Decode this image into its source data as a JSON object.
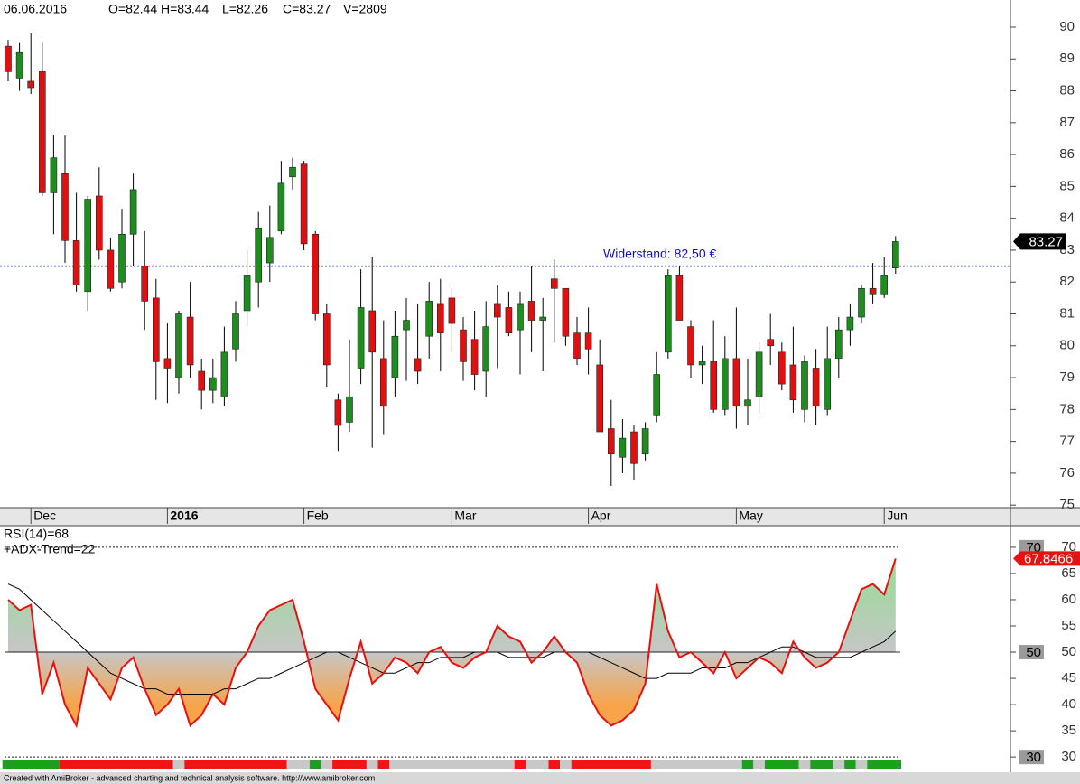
{
  "chart_data": [
    {
      "type": "candlestick",
      "header": [
        "06.06.2016",
        "O=82.44",
        "H=83.44",
        "L=82.26",
        "C=83.27",
        "V=2809"
      ],
      "categories": [
        null,
        null,
        "Dec",
        null,
        null,
        null,
        null,
        null,
        null,
        null,
        null,
        null,
        null,
        null,
        "2016",
        null,
        null,
        null,
        null,
        null,
        null,
        null,
        null,
        null,
        null,
        null,
        "Feb",
        null,
        null,
        null,
        null,
        null,
        null,
        null,
        null,
        null,
        null,
        null,
        null,
        "Mar",
        null,
        null,
        null,
        null,
        null,
        null,
        null,
        null,
        null,
        null,
        null,
        "Apr",
        null,
        null,
        null,
        null,
        null,
        null,
        null,
        null,
        null,
        null,
        null,
        null,
        "May",
        null,
        null,
        null,
        null,
        null,
        null,
        null,
        null,
        null,
        null,
        null,
        null,
        "Jun",
        null
      ],
      "candles": [
        [
          89.4,
          89.6,
          88.3,
          88.6
        ],
        [
          88.4,
          89.5,
          88.0,
          89.2
        ],
        [
          88.3,
          89.8,
          87.9,
          88.1
        ],
        [
          88.6,
          89.5,
          84.7,
          84.8
        ],
        [
          84.8,
          86.6,
          83.5,
          85.9
        ],
        [
          85.4,
          86.6,
          82.6,
          83.3
        ],
        [
          83.3,
          84.8,
          81.7,
          81.9
        ],
        [
          81.7,
          84.7,
          81.1,
          84.6
        ],
        [
          84.7,
          85.6,
          82.7,
          83.0
        ],
        [
          83.0,
          83.4,
          81.7,
          81.8
        ],
        [
          82.0,
          84.3,
          81.8,
          83.5
        ],
        [
          83.5,
          85.4,
          82.5,
          84.9
        ],
        [
          82.5,
          83.6,
          80.5,
          81.4
        ],
        [
          81.5,
          82.1,
          78.3,
          79.5
        ],
        [
          79.6,
          80.7,
          78.2,
          79.3
        ],
        [
          79.0,
          81.1,
          78.5,
          81.0
        ],
        [
          80.9,
          82.0,
          79.0,
          79.4
        ],
        [
          79.2,
          79.6,
          78.0,
          78.6
        ],
        [
          78.6,
          79.6,
          78.2,
          79.0
        ],
        [
          78.4,
          80.6,
          78.1,
          79.8
        ],
        [
          79.9,
          81.4,
          79.5,
          81.0
        ],
        [
          81.1,
          83.0,
          80.6,
          82.2
        ],
        [
          82.0,
          84.2,
          81.2,
          83.7
        ],
        [
          82.6,
          84.4,
          82.0,
          83.4
        ],
        [
          83.6,
          85.8,
          83.5,
          85.1
        ],
        [
          85.3,
          85.9,
          84.9,
          85.6
        ],
        [
          85.7,
          85.8,
          83.0,
          83.2
        ],
        [
          83.5,
          83.6,
          80.8,
          81.0
        ],
        [
          81.0,
          81.3,
          78.7,
          79.4
        ],
        [
          78.3,
          78.5,
          76.7,
          77.5
        ],
        [
          77.6,
          80.2,
          77.3,
          78.4
        ],
        [
          79.3,
          82.4,
          78.8,
          81.2
        ],
        [
          81.1,
          82.8,
          76.8,
          79.8
        ],
        [
          79.6,
          80.8,
          77.2,
          78.1
        ],
        [
          79.0,
          81.1,
          78.4,
          80.3
        ],
        [
          80.5,
          81.5,
          78.9,
          80.8
        ],
        [
          79.6,
          81.3,
          78.8,
          79.2
        ],
        [
          80.3,
          82.0,
          79.6,
          81.4
        ],
        [
          81.3,
          82.1,
          79.2,
          80.4
        ],
        [
          81.5,
          81.8,
          79.8,
          80.7
        ],
        [
          80.5,
          80.9,
          78.9,
          79.5
        ],
        [
          80.2,
          81.1,
          78.6,
          79.1
        ],
        [
          79.2,
          81.4,
          78.4,
          80.6
        ],
        [
          81.3,
          81.9,
          79.3,
          80.9
        ],
        [
          81.2,
          81.7,
          80.3,
          80.4
        ],
        [
          80.5,
          81.7,
          79.1,
          81.3
        ],
        [
          81.4,
          82.5,
          79.8,
          80.8
        ],
        [
          80.8,
          81.5,
          79.2,
          80.9
        ],
        [
          82.1,
          82.7,
          80.1,
          81.8
        ],
        [
          81.8,
          81.8,
          80.0,
          80.3
        ],
        [
          80.4,
          80.9,
          79.4,
          79.6
        ],
        [
          80.4,
          81.2,
          79.1,
          79.9
        ],
        [
          79.4,
          80.2,
          77.3,
          77.3
        ],
        [
          77.4,
          78.3,
          75.6,
          76.6
        ],
        [
          76.5,
          77.7,
          76.0,
          77.1
        ],
        [
          77.3,
          77.5,
          75.8,
          76.3
        ],
        [
          76.6,
          77.6,
          76.4,
          77.4
        ],
        [
          77.8,
          79.8,
          77.6,
          79.1
        ],
        [
          79.8,
          82.4,
          79.6,
          82.2
        ],
        [
          82.2,
          82.5,
          80.8,
          80.8
        ],
        [
          80.6,
          80.8,
          79.0,
          79.4
        ],
        [
          79.4,
          80.0,
          78.8,
          79.5
        ],
        [
          79.5,
          80.8,
          77.9,
          78.0
        ],
        [
          78.0,
          80.3,
          77.8,
          79.6
        ],
        [
          79.6,
          81.2,
          77.4,
          78.1
        ],
        [
          78.1,
          79.6,
          77.5,
          78.3
        ],
        [
          78.4,
          80.1,
          77.9,
          79.8
        ],
        [
          80.2,
          81.0,
          79.4,
          80.0
        ],
        [
          79.8,
          80.1,
          78.6,
          78.8
        ],
        [
          79.4,
          80.6,
          77.9,
          78.3
        ],
        [
          78.0,
          79.7,
          77.6,
          79.5
        ],
        [
          79.3,
          79.9,
          77.5,
          78.1
        ],
        [
          78.0,
          80.6,
          77.8,
          79.6
        ],
        [
          79.6,
          80.9,
          79.0,
          80.5
        ],
        [
          80.5,
          81.3,
          80.0,
          80.9
        ],
        [
          80.9,
          81.9,
          80.7,
          81.8
        ],
        [
          81.8,
          82.6,
          81.3,
          81.6
        ],
        [
          81.6,
          82.8,
          81.5,
          82.2
        ],
        [
          82.44,
          83.44,
          82.26,
          83.27
        ]
      ],
      "up_color": "#1e8c1e",
      "down_color": "#e01010",
      "resistance": {
        "value": 82.5,
        "label": "Widerstand: 82,50 €",
        "color": "#1010c0"
      },
      "last_price": 83.27,
      "ylim": [
        74.92,
        90.85
      ],
      "yticks": [
        75,
        76,
        77,
        78,
        79,
        80,
        81,
        82,
        83,
        84,
        85,
        86,
        87,
        88,
        89,
        90
      ]
    },
    {
      "type": "rsi",
      "labels": [
        "RSI(14)=68",
        "+ADX-Trend=22"
      ],
      "rsi": {
        "color": "#e81010",
        "values": [
          60,
          58,
          59,
          42,
          48,
          40,
          36,
          47,
          44,
          41,
          47,
          49,
          43,
          38,
          40,
          43,
          36,
          38,
          42,
          40,
          47,
          50,
          55,
          58,
          59,
          60,
          52,
          43,
          40,
          37,
          45,
          52,
          44,
          46,
          49,
          48,
          46,
          50,
          51,
          48,
          47,
          49,
          50,
          55,
          53,
          52,
          48,
          50,
          53,
          50,
          48,
          42,
          38,
          36,
          37,
          39,
          44,
          63,
          54,
          49,
          50,
          48,
          46,
          50,
          45,
          47,
          49,
          48,
          46,
          52,
          49,
          47,
          48,
          50,
          56,
          62,
          63,
          61,
          67.8466
        ]
      },
      "ma": {
        "color": "#000000",
        "values": [
          63,
          62,
          60,
          58,
          56,
          54,
          52,
          50,
          48,
          46,
          45,
          44,
          43,
          43,
          42,
          42,
          42,
          42,
          42,
          43,
          43,
          44,
          45,
          45,
          46,
          47,
          48,
          49,
          50,
          50,
          49,
          48,
          47,
          46,
          46,
          47,
          48,
          48,
          49,
          49,
          49,
          50,
          50,
          50,
          49,
          49,
          49,
          49,
          50,
          50,
          50,
          50,
          49,
          48,
          47,
          46,
          45,
          45,
          46,
          46,
          46,
          47,
          47,
          47,
          48,
          48,
          49,
          50,
          51,
          51,
          50,
          49,
          49,
          49,
          49,
          50,
          51,
          52,
          54
        ]
      },
      "trend": [
        {
          "from": 0,
          "to": 4,
          "color": "#1e9e1e"
        },
        {
          "from": 5,
          "to": 14,
          "color": "#f01414"
        },
        {
          "from": 15,
          "to": 15,
          "color": "#c8c8c8"
        },
        {
          "from": 16,
          "to": 24,
          "color": "#f01414"
        },
        {
          "from": 25,
          "to": 26,
          "color": "#c8c8c8"
        },
        {
          "from": 27,
          "to": 27,
          "color": "#1e9e1e"
        },
        {
          "from": 28,
          "to": 28,
          "color": "#c8c8c8"
        },
        {
          "from": 29,
          "to": 31,
          "color": "#f01414"
        },
        {
          "from": 32,
          "to": 32,
          "color": "#c8c8c8"
        },
        {
          "from": 33,
          "to": 33,
          "color": "#f01414"
        },
        {
          "from": 34,
          "to": 44,
          "color": "#c8c8c8"
        },
        {
          "from": 45,
          "to": 45,
          "color": "#f01414"
        },
        {
          "from": 46,
          "to": 47,
          "color": "#c8c8c8"
        },
        {
          "from": 48,
          "to": 48,
          "color": "#f01414"
        },
        {
          "from": 49,
          "to": 49,
          "color": "#c8c8c8"
        },
        {
          "from": 50,
          "to": 56,
          "color": "#f01414"
        },
        {
          "from": 57,
          "to": 64,
          "color": "#c8c8c8"
        },
        {
          "from": 65,
          "to": 65,
          "color": "#1e9e1e"
        },
        {
          "from": 66,
          "to": 66,
          "color": "#c8c8c8"
        },
        {
          "from": 67,
          "to": 69,
          "color": "#1e9e1e"
        },
        {
          "from": 70,
          "to": 70,
          "color": "#c8c8c8"
        },
        {
          "from": 71,
          "to": 72,
          "color": "#1e9e1e"
        },
        {
          "from": 73,
          "to": 73,
          "color": "#c8c8c8"
        },
        {
          "from": 74,
          "to": 74,
          "color": "#1e9e1e"
        },
        {
          "from": 75,
          "to": 75,
          "color": "#c8c8c8"
        },
        {
          "from": 76,
          "to": 78,
          "color": "#1e9e1e"
        }
      ],
      "ylim": [
        27.1,
        73.6
      ],
      "yticks": [
        30,
        35,
        40,
        45,
        50,
        55,
        60,
        65,
        70
      ],
      "reference_lines": [
        70,
        50,
        30
      ],
      "last_value_color": "#e81010"
    }
  ],
  "footer": "Created with AmiBroker - advanced charting and technical analysis software. http://www.amibroker.com"
}
